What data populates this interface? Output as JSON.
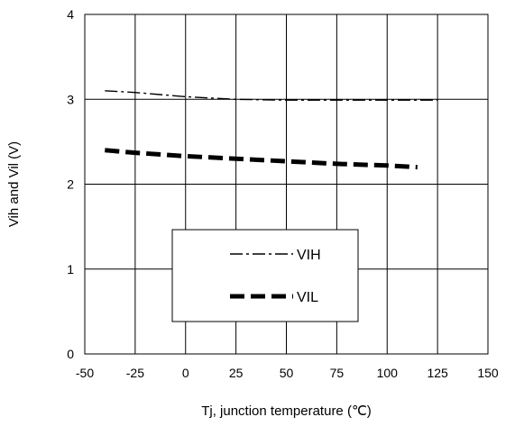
{
  "chart_data": {
    "type": "line",
    "xlabel": "Tj, junction temperature (℃)",
    "ylabel": "Vih and Vil (V)",
    "xlim": [
      -50,
      150
    ],
    "ylim": [
      0,
      4
    ],
    "x_ticks": [
      "-50",
      "-25",
      "0",
      "25",
      "50",
      "75",
      "100",
      "125",
      "150"
    ],
    "y_ticks": [
      "0",
      "1",
      "2",
      "3",
      "4"
    ],
    "grid": true,
    "legend_position": "center-bottom",
    "series": [
      {
        "name": "VIH",
        "style": "dash-dot",
        "color": "#000000",
        "x": [
          -40,
          -25,
          0,
          25,
          50,
          75,
          100,
          125
        ],
        "y": [
          3.1,
          3.08,
          3.03,
          3.0,
          2.99,
          2.99,
          2.99,
          2.99
        ]
      },
      {
        "name": "VIL",
        "style": "dashed-thick",
        "color": "#000000",
        "x": [
          -40,
          -25,
          0,
          25,
          50,
          75,
          100,
          115
        ],
        "y": [
          2.4,
          2.37,
          2.33,
          2.3,
          2.27,
          2.24,
          2.22,
          2.2
        ]
      }
    ]
  }
}
